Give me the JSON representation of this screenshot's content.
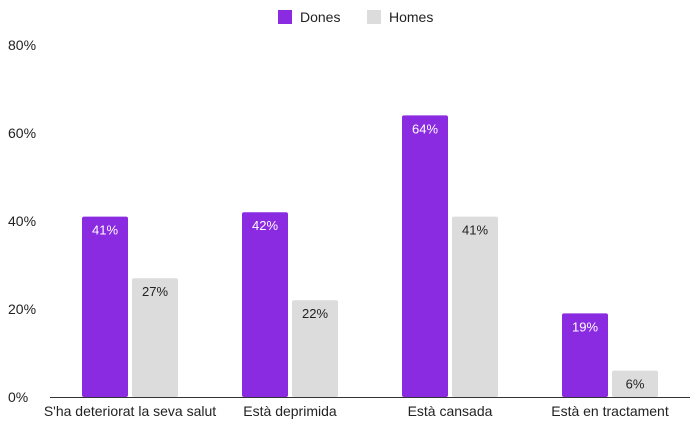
{
  "chart_data": {
    "type": "bar",
    "title": "",
    "xlabel": "",
    "ylabel": "",
    "categories": [
      "S'ha deteriorat la seva salut",
      "Està deprimida",
      "Està cansada",
      "Està en tractament"
    ],
    "series": [
      {
        "name": "Dones",
        "values": [
          41,
          42,
          64,
          19
        ],
        "labels": [
          "41%",
          "42%",
          "64%",
          "19%"
        ],
        "color": "#8a2be2",
        "label_color": "#ffffff"
      },
      {
        "name": "Homes",
        "values": [
          27,
          22,
          41,
          6
        ],
        "labels": [
          "27%",
          "22%",
          "41%",
          "6%"
        ],
        "color": "#dcdcdc",
        "label_color": "#222222"
      }
    ],
    "ylim": [
      0,
      80
    ],
    "yticks": [
      0,
      20,
      40,
      60,
      80
    ],
    "ytick_labels": [
      "0%",
      "20%",
      "40%",
      "60%",
      "80%"
    ],
    "grid": false,
    "legend_position": "top-center"
  }
}
